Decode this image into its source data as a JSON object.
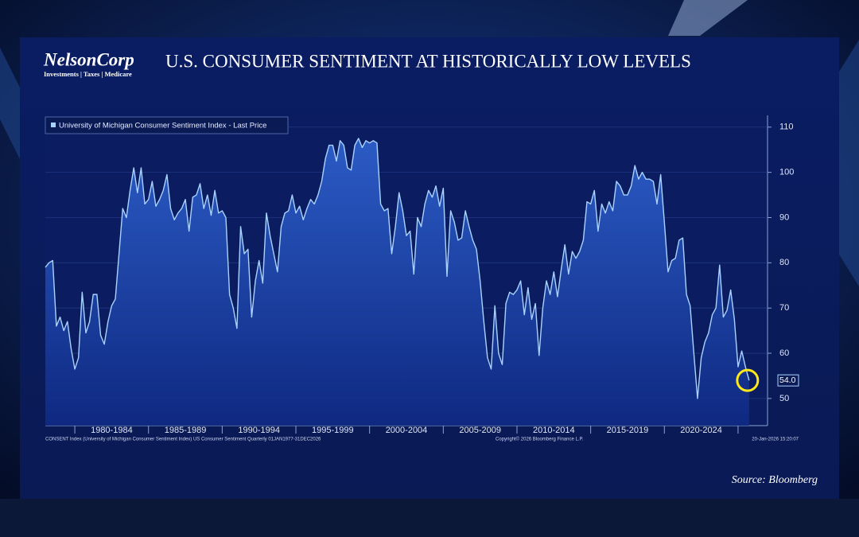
{
  "header": {
    "logo_name": "NelsonCorp",
    "logo_tagline": "Investments | Taxes | Medicare"
  },
  "chart_data": {
    "type": "line",
    "title": "U.S. CONSUMER SENTIMENT AT HISTORICALLY LOW LEVELS",
    "x": [
      1978,
      1978.25,
      1978.5,
      1978.75,
      1979,
      1979.25,
      1979.5,
      1979.75,
      1980,
      1980.25,
      1980.5,
      1980.75,
      1981,
      1981.25,
      1981.5,
      1981.75,
      1982,
      1982.25,
      1982.5,
      1982.75,
      1983,
      1983.25,
      1983.5,
      1983.75,
      1984,
      1984.25,
      1984.5,
      1984.75,
      1985,
      1985.25,
      1985.5,
      1985.75,
      1986,
      1986.25,
      1986.5,
      1986.75,
      1987,
      1987.25,
      1987.5,
      1987.75,
      1988,
      1988.25,
      1988.5,
      1988.75,
      1989,
      1989.25,
      1989.5,
      1989.75,
      1990,
      1990.25,
      1990.5,
      1990.75,
      1991,
      1991.25,
      1991.5,
      1991.75,
      1992,
      1992.25,
      1992.5,
      1992.75,
      1993,
      1993.25,
      1993.5,
      1993.75,
      1994,
      1994.25,
      1994.5,
      1994.75,
      1995,
      1995.25,
      1995.5,
      1995.75,
      1996,
      1996.25,
      1996.5,
      1996.75,
      1997,
      1997.25,
      1997.5,
      1997.75,
      1998,
      1998.25,
      1998.5,
      1998.75,
      1999,
      1999.25,
      1999.5,
      1999.75,
      2000,
      2000.25,
      2000.5,
      2000.75,
      2001,
      2001.25,
      2001.5,
      2001.75,
      2002,
      2002.25,
      2002.5,
      2002.75,
      2003,
      2003.25,
      2003.5,
      2003.75,
      2004,
      2004.25,
      2004.5,
      2004.75,
      2005,
      2005.25,
      2005.5,
      2005.75,
      2006,
      2006.25,
      2006.5,
      2006.75,
      2007,
      2007.25,
      2007.5,
      2007.75,
      2008,
      2008.25,
      2008.5,
      2008.75,
      2009,
      2009.25,
      2009.5,
      2009.75,
      2010,
      2010.25,
      2010.5,
      2010.75,
      2011,
      2011.25,
      2011.5,
      2011.75,
      2012,
      2012.25,
      2012.5,
      2012.75,
      2013,
      2013.25,
      2013.5,
      2013.75,
      2014,
      2014.25,
      2014.5,
      2014.75,
      2015,
      2015.25,
      2015.5,
      2015.75,
      2016,
      2016.25,
      2016.5,
      2016.75,
      2017,
      2017.25,
      2017.5,
      2017.75,
      2018,
      2018.25,
      2018.5,
      2018.75,
      2019,
      2019.25,
      2019.5,
      2019.75,
      2020,
      2020.25,
      2020.5,
      2020.75,
      2021,
      2021.25,
      2021.5,
      2021.75,
      2022,
      2022.25,
      2022.5,
      2022.75,
      2023,
      2023.25,
      2023.5,
      2023.75,
      2024,
      2024.25,
      2024.5,
      2024.75,
      2025,
      2025.25,
      2025.5,
      2025.75
    ],
    "series": [
      {
        "name": "University of Michigan Consumer Sentiment Index - Last Price",
        "color": "#a9d3ff",
        "values": [
          79,
          80,
          80.5,
          66,
          68,
          65,
          67,
          61,
          56.5,
          59,
          73.5,
          64.5,
          67,
          73,
          73,
          64,
          62,
          67,
          70.5,
          72,
          82,
          92,
          90,
          96,
          101,
          95.5,
          101,
          93,
          94,
          98,
          92.5,
          94,
          96,
          99.5,
          92,
          89.5,
          91,
          92,
          94,
          87,
          94.5,
          95,
          97.5,
          92,
          95,
          90.5,
          96,
          91,
          91.5,
          90,
          73,
          70,
          65.5,
          88,
          82,
          83,
          68,
          76,
          80.5,
          75.5,
          91,
          86,
          82,
          78,
          88,
          91,
          91.5,
          95,
          91,
          92.5,
          89.5,
          92,
          94,
          93,
          95,
          98,
          103,
          106,
          106,
          102.5,
          107,
          106,
          101,
          100.5,
          106,
          107.5,
          105.5,
          107,
          106.5,
          107,
          106.5,
          93,
          91.5,
          92,
          82,
          88,
          95.5,
          91.5,
          86,
          87,
          77.5,
          90,
          88,
          93,
          96,
          94.5,
          97,
          92.5,
          96.5,
          77,
          91.5,
          89,
          85,
          85.5,
          91.5,
          88,
          85,
          83,
          76,
          67,
          59,
          56.5,
          70.5,
          60,
          57.5,
          71,
          73.5,
          73,
          74,
          76,
          68.5,
          74.5,
          67.5,
          71,
          59.5,
          70,
          76,
          73,
          78,
          72.5,
          78.5,
          84,
          77.5,
          82.5,
          81,
          82.5,
          85,
          93.5,
          93,
          96,
          87,
          93,
          91,
          93.5,
          91.5,
          98,
          97,
          95,
          95,
          97,
          101.5,
          98.5,
          100,
          98.5,
          98.5,
          98,
          93,
          99.5,
          89,
          78,
          80.5,
          81,
          85,
          85.5,
          73,
          70.5,
          60,
          50,
          59,
          62.5,
          64.5,
          68.5,
          70,
          79.5,
          68,
          69.5,
          74,
          67.5,
          57,
          60.5,
          57,
          54
        ],
        "last_price_label": "54.0"
      }
    ],
    "xlim": [
      1978,
      2027
    ],
    "xticks": [
      {
        "value": 1982.5,
        "label": "1980-1984"
      },
      {
        "value": 1987.5,
        "label": "1985-1989"
      },
      {
        "value": 1992.5,
        "label": "1990-1994"
      },
      {
        "value": 1997.5,
        "label": "1995-1999"
      },
      {
        "value": 2002.5,
        "label": "2000-2004"
      },
      {
        "value": 2007.5,
        "label": "2005-2009"
      },
      {
        "value": 2012.5,
        "label": "2010-2014"
      },
      {
        "value": 2017.5,
        "label": "2015-2019"
      },
      {
        "value": 2022.5,
        "label": "2020-2024"
      }
    ],
    "ylim": [
      44,
      112.6
    ],
    "yticks": [
      50,
      60,
      70,
      80,
      90,
      100,
      110
    ],
    "grid": true,
    "legend": "top-left",
    "footnote_left": "CONSENT Index (University of Michigan Consumer Sentiment Index) US Consumer Sentiment Quarterly 01JAN1977-31DEC2026",
    "footnote_center": "Copyright© 2026 Bloomberg Finance L.P.",
    "footnote_right": "20-Jan-2026 15:20:07",
    "source": "Source: Bloomberg"
  }
}
